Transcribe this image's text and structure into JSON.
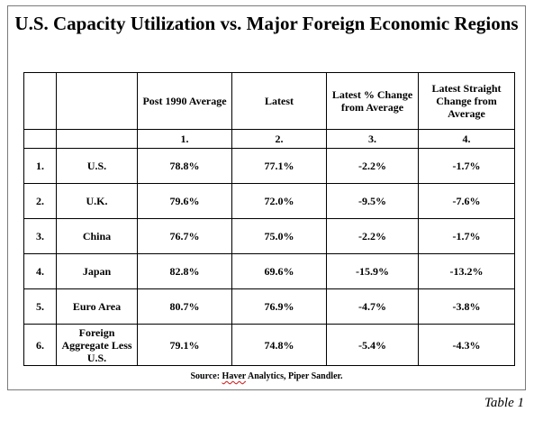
{
  "title": "U.S. Capacity Utilization vs. Major Foreign Economic Regions",
  "headers": {
    "col3": "Post 1990 Average",
    "col4": "Latest",
    "col5": "Latest % Change from Average",
    "col6": "Latest Straight Change from Average"
  },
  "column_numbers": [
    "1.",
    "2.",
    "3.",
    "4."
  ],
  "rows": [
    {
      "num": "1.",
      "region": "U.S.",
      "avg": "78.8%",
      "latest": "77.1%",
      "pct_change": "-2.2%",
      "straight_change": "-1.7%"
    },
    {
      "num": "2.",
      "region": "U.K.",
      "avg": "79.6%",
      "latest": "72.0%",
      "pct_change": "-9.5%",
      "straight_change": "-7.6%"
    },
    {
      "num": "3.",
      "region": "China",
      "avg": "76.7%",
      "latest": "75.0%",
      "pct_change": "-2.2%",
      "straight_change": "-1.7%"
    },
    {
      "num": "4.",
      "region": "Japan",
      "avg": "82.8%",
      "latest": "69.6%",
      "pct_change": "-15.9%",
      "straight_change": "-13.2%"
    },
    {
      "num": "5.",
      "region": "Euro Area",
      "avg": "80.7%",
      "latest": "76.9%",
      "pct_change": "-4.7%",
      "straight_change": "-3.8%"
    },
    {
      "num": "6.",
      "region": "Foreign Aggregate Less U.S.",
      "avg": "79.1%",
      "latest": "74.8%",
      "pct_change": "-5.4%",
      "straight_change": "-4.3%"
    }
  ],
  "source": {
    "prefix": "Source: ",
    "haver": "Haver",
    "rest": " Analytics, Piper Sandler."
  },
  "caption": "Table 1"
}
